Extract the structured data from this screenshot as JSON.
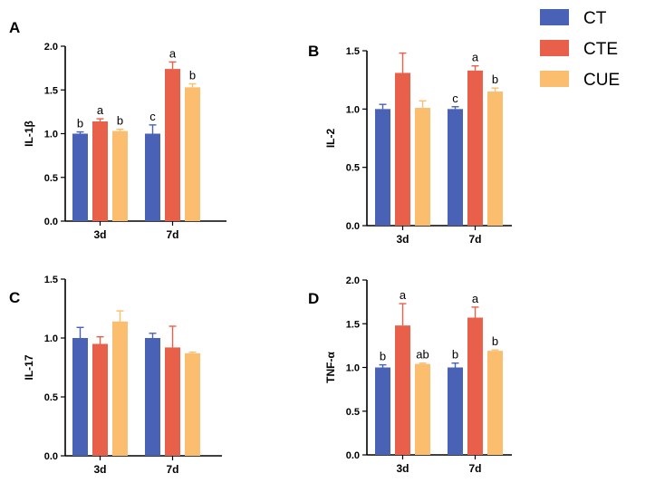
{
  "legend": [
    {
      "name": "CT",
      "color": "#4a62b5"
    },
    {
      "name": "CTE",
      "color": "#e8604a"
    },
    {
      "name": "CUE",
      "color": "#fbbd6e"
    }
  ],
  "chart_data": [
    {
      "type": "bar",
      "panel": "A",
      "ylabel": "IL-1β",
      "xlabel": "",
      "categories": [
        "3d",
        "7d"
      ],
      "ylim": [
        0,
        2.0
      ],
      "yticks": [
        "0.0",
        "0.5",
        "1.0",
        "1.5",
        "2.0"
      ],
      "series": [
        {
          "name": "CT",
          "values": [
            1.0,
            1.0
          ],
          "errors": [
            0.02,
            0.1
          ],
          "labels": [
            "b",
            "c"
          ]
        },
        {
          "name": "CTE",
          "values": [
            1.14,
            1.74
          ],
          "errors": [
            0.03,
            0.08
          ],
          "labels": [
            "a",
            "a"
          ]
        },
        {
          "name": "CUE",
          "values": [
            1.03,
            1.53
          ],
          "errors": [
            0.02,
            0.04
          ],
          "labels": [
            "b",
            "b"
          ]
        }
      ]
    },
    {
      "type": "bar",
      "panel": "B",
      "ylabel": "IL-2",
      "xlabel": "",
      "categories": [
        "3d",
        "7d"
      ],
      "ylim": [
        0,
        1.5
      ],
      "yticks": [
        "0.0",
        "0.5",
        "1.0",
        "1.5"
      ],
      "series": [
        {
          "name": "CT",
          "values": [
            1.0,
            1.0
          ],
          "errors": [
            0.04,
            0.02
          ],
          "labels": [
            "",
            "c"
          ]
        },
        {
          "name": "CTE",
          "values": [
            1.31,
            1.33
          ],
          "errors": [
            0.17,
            0.04
          ],
          "labels": [
            "",
            "a"
          ]
        },
        {
          "name": "CUE",
          "values": [
            1.01,
            1.15
          ],
          "errors": [
            0.06,
            0.03
          ],
          "labels": [
            "",
            "b"
          ]
        }
      ]
    },
    {
      "type": "bar",
      "panel": "C",
      "ylabel": "IL-17",
      "xlabel": "",
      "categories": [
        "3d",
        "7d"
      ],
      "ylim": [
        0,
        1.5
      ],
      "yticks": [
        "0.0",
        "0.5",
        "1.0",
        "1.5"
      ],
      "series": [
        {
          "name": "CT",
          "values": [
            1.0,
            1.0
          ],
          "errors": [
            0.09,
            0.04
          ],
          "labels": [
            "",
            ""
          ]
        },
        {
          "name": "CTE",
          "values": [
            0.95,
            0.92
          ],
          "errors": [
            0.06,
            0.18
          ],
          "labels": [
            "",
            ""
          ]
        },
        {
          "name": "CUE",
          "values": [
            1.14,
            0.87
          ],
          "errors": [
            0.09,
            0.01
          ],
          "labels": [
            "",
            ""
          ]
        }
      ]
    },
    {
      "type": "bar",
      "panel": "D",
      "ylabel": "TNF-α",
      "xlabel": "",
      "categories": [
        "3d",
        "7d"
      ],
      "ylim": [
        0,
        2.0
      ],
      "yticks": [
        "0.0",
        "0.5",
        "1.0",
        "1.5",
        "2.0"
      ],
      "series": [
        {
          "name": "CT",
          "values": [
            1.0,
            1.0
          ],
          "errors": [
            0.03,
            0.05
          ],
          "labels": [
            "b",
            "b"
          ]
        },
        {
          "name": "CTE",
          "values": [
            1.48,
            1.57
          ],
          "errors": [
            0.25,
            0.12
          ],
          "labels": [
            "a",
            "a"
          ]
        },
        {
          "name": "CUE",
          "values": [
            1.04,
            1.19
          ],
          "errors": [
            0.01,
            0.01
          ],
          "labels": [
            "ab",
            "b"
          ]
        }
      ]
    }
  ]
}
